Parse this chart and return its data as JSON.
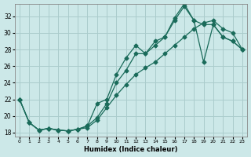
{
  "xlabel": "Humidex (Indice chaleur)",
  "bg_color": "#cce8e8",
  "grid_color": "#aacccc",
  "line_color": "#1a6b5a",
  "xlim": [
    -0.5,
    23.5
  ],
  "ylim": [
    17.5,
    33.5
  ],
  "xticks": [
    0,
    1,
    2,
    3,
    4,
    5,
    6,
    7,
    8,
    9,
    10,
    11,
    12,
    13,
    14,
    15,
    16,
    17,
    18,
    19,
    20,
    21,
    22,
    23
  ],
  "yticks": [
    18,
    20,
    22,
    24,
    26,
    28,
    30,
    32
  ],
  "series1_y": [
    22.0,
    19.2,
    18.3,
    18.5,
    18.3,
    18.2,
    18.4,
    18.6,
    19.5,
    21.0,
    22.5,
    23.8,
    25.0,
    25.8,
    26.5,
    27.5,
    28.5,
    29.5,
    30.5,
    31.2,
    31.5,
    30.5,
    30.0,
    28.0
  ],
  "series2_y": [
    22.0,
    19.2,
    18.3,
    18.5,
    18.3,
    18.2,
    18.4,
    18.8,
    19.8,
    21.5,
    24.0,
    25.5,
    27.5,
    27.5,
    28.5,
    29.5,
    31.5,
    33.2,
    31.5,
    31.0,
    31.0,
    29.5,
    29.0,
    28.0
  ],
  "series3_y": [
    22.0,
    19.2,
    18.3,
    18.5,
    18.3,
    18.2,
    18.4,
    18.8,
    21.5,
    22.0,
    25.0,
    27.0,
    28.5,
    27.5,
    29.0,
    29.5,
    31.8,
    33.5,
    31.5,
    26.5,
    31.0,
    29.5,
    29.0,
    28.0
  ]
}
